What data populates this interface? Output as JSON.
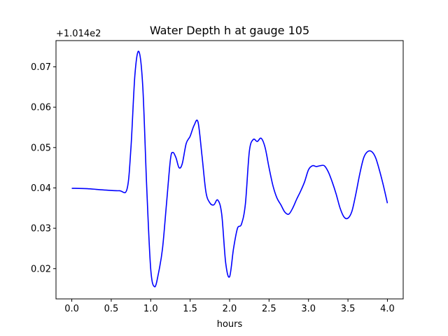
{
  "chart_data": {
    "type": "line",
    "title": "Water Depth h at gauge 105",
    "xlabel": "hours",
    "ylabel": "",
    "y_offset_label": "+1.014e2",
    "xlim": [
      -0.2,
      4.2
    ],
    "ylim": [
      0.0125,
      0.0765
    ],
    "x_ticks": [
      0.0,
      0.5,
      1.0,
      1.5,
      2.0,
      2.5,
      3.0,
      3.5,
      4.0
    ],
    "x_tick_labels": [
      "0.0",
      "0.5",
      "1.0",
      "1.5",
      "2.0",
      "2.5",
      "3.0",
      "3.5",
      "4.0"
    ],
    "y_ticks": [
      0.02,
      0.03,
      0.04,
      0.05,
      0.06,
      0.07
    ],
    "y_tick_labels": [
      "0.02",
      "0.03",
      "0.04",
      "0.05",
      "0.06",
      "0.07"
    ],
    "grid": false,
    "line_color": "#0000ff",
    "series": [
      {
        "x": [
          0.0,
          0.2,
          0.4,
          0.6,
          0.7,
          0.75,
          0.8,
          0.85,
          0.9,
          0.95,
          1.0,
          1.05,
          1.1,
          1.15,
          1.2,
          1.25,
          1.28,
          1.32,
          1.36,
          1.4,
          1.45,
          1.5,
          1.55,
          1.6,
          1.65,
          1.7,
          1.75,
          1.8,
          1.85,
          1.9,
          1.95,
          2.0,
          2.05,
          2.1,
          2.15,
          2.2,
          2.25,
          2.3,
          2.35,
          2.4,
          2.45,
          2.5,
          2.55,
          2.6,
          2.65,
          2.7,
          2.75,
          2.8,
          2.85,
          2.9,
          2.95,
          3.0,
          3.05,
          3.1,
          3.15,
          3.2,
          3.25,
          3.3,
          3.35,
          3.4,
          3.45,
          3.5,
          3.55,
          3.6,
          3.65,
          3.7,
          3.75,
          3.8,
          3.85,
          3.9,
          3.95,
          4.0
        ],
        "y": [
          0.0399,
          0.0398,
          0.0395,
          0.0393,
          0.0397,
          0.05,
          0.068,
          0.0738,
          0.065,
          0.04,
          0.02,
          0.0155,
          0.019,
          0.025,
          0.036,
          0.047,
          0.0488,
          0.0475,
          0.045,
          0.046,
          0.051,
          0.0528,
          0.0555,
          0.0563,
          0.048,
          0.039,
          0.0363,
          0.0358,
          0.037,
          0.0335,
          0.0215,
          0.018,
          0.025,
          0.03,
          0.031,
          0.036,
          0.049,
          0.052,
          0.0515,
          0.0523,
          0.05,
          0.045,
          0.0405,
          0.0375,
          0.0358,
          0.034,
          0.0335,
          0.035,
          0.0372,
          0.0392,
          0.0415,
          0.0445,
          0.0455,
          0.0453,
          0.0455,
          0.0455,
          0.044,
          0.0415,
          0.0385,
          0.035,
          0.0328,
          0.0325,
          0.0342,
          0.0385,
          0.0435,
          0.0475,
          0.049,
          0.049,
          0.0475,
          0.0443,
          0.0405,
          0.0362
        ]
      }
    ]
  }
}
